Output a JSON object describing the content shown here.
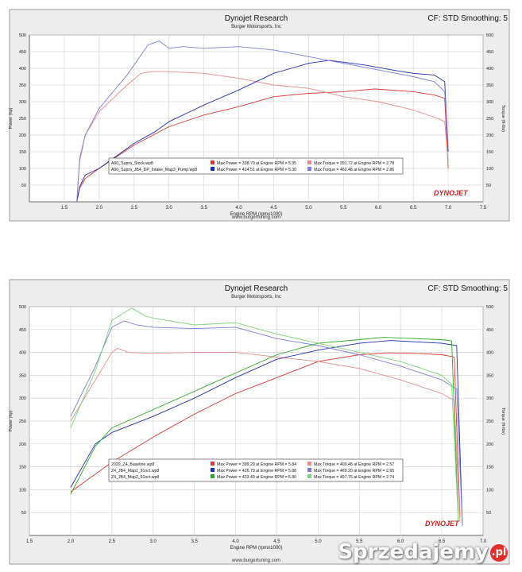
{
  "watermark": {
    "text": "Sprzedajemy",
    "suffix": ".pl"
  },
  "chart_data": [
    {
      "type": "line",
      "title": "Dynojet Research",
      "subtitle": "Burger Motorsports, Inc",
      "header_right": "CF: STD Smoothing: 5",
      "xlabel": "Engine RPM (rpmx1000)",
      "ylabel_left": "Power (hp)",
      "ylabel_right": "Torque (ft-lbs)",
      "footer": "www.burgertuning.com",
      "logo": "DYNOJET",
      "xlim": [
        1.0,
        7.5
      ],
      "ylim": [
        0,
        500
      ],
      "xticks": [
        "1.5",
        "2.0",
        "2.5",
        "3.0",
        "3.5",
        "4.0",
        "4.5",
        "5.0",
        "5.5",
        "6.0",
        "6.5",
        "7.0",
        "7.5"
      ],
      "yticks": [
        "50",
        "100",
        "150",
        "200",
        "250",
        "300",
        "350",
        "400",
        "450",
        "500"
      ],
      "grid": true,
      "legend_position": "bottom-center",
      "legend": [
        {
          "run": "A90_Supra_Stock.wp8",
          "power": "Max Power = 338.70 at Engine RPM = 5.95",
          "torque": "Max Torque = 391.72 at Engine RPM = 2.78",
          "power_color": "#d83a3a",
          "torque_color": "#e88a8a"
        },
        {
          "run": "A90_Supra_JB4_DP_Intake_Map3_Pump.wp8",
          "power": "Max Power = 424.51 at Engine RPM = 5.30",
          "torque": "Max Torque = 482.48 at Engine RPM = 2.86",
          "power_color": "#2030a8",
          "torque_color": "#7a7ed8"
        }
      ],
      "series": [
        {
          "name": "A90_Supra_Stock.wp8 Power",
          "color": "#d83a3a",
          "points": [
            [
              1.68,
              0
            ],
            [
              1.72,
              40
            ],
            [
              1.8,
              70
            ],
            [
              2.0,
              100
            ],
            [
              2.5,
              170
            ],
            [
              3.0,
              225
            ],
            [
              3.5,
              260
            ],
            [
              4.0,
              285
            ],
            [
              4.5,
              315
            ],
            [
              5.0,
              325
            ],
            [
              5.5,
              330
            ],
            [
              5.95,
              338
            ],
            [
              6.5,
              330
            ],
            [
              6.8,
              320
            ],
            [
              6.95,
              310
            ],
            [
              7.0,
              100
            ]
          ]
        },
        {
          "name": "A90_Supra_Stock.wp8 Torque",
          "color": "#e88a8a",
          "points": [
            [
              1.68,
              0
            ],
            [
              1.72,
              120
            ],
            [
              1.8,
              200
            ],
            [
              2.0,
              270
            ],
            [
              2.4,
              350
            ],
            [
              2.6,
              385
            ],
            [
              2.78,
              391
            ],
            [
              3.0,
              390
            ],
            [
              3.5,
              385
            ],
            [
              4.0,
              370
            ],
            [
              4.5,
              350
            ],
            [
              5.0,
              340
            ],
            [
              5.5,
              315
            ],
            [
              6.0,
              300
            ],
            [
              6.5,
              275
            ],
            [
              6.85,
              250
            ],
            [
              6.95,
              240
            ],
            [
              7.0,
              120
            ]
          ]
        },
        {
          "name": "A90_Supra_JB4_DP_Intake_Map3_Pump.wp8 Power",
          "color": "#2030a8",
          "points": [
            [
              1.68,
              0
            ],
            [
              1.72,
              45
            ],
            [
              1.8,
              80
            ],
            [
              2.0,
              100
            ],
            [
              2.5,
              175
            ],
            [
              2.8,
              210
            ],
            [
              3.0,
              240
            ],
            [
              3.5,
              290
            ],
            [
              4.0,
              335
            ],
            [
              4.5,
              385
            ],
            [
              5.0,
              415
            ],
            [
              5.3,
              424
            ],
            [
              5.8,
              410
            ],
            [
              6.2,
              395
            ],
            [
              6.5,
              385
            ],
            [
              6.8,
              380
            ],
            [
              6.95,
              360
            ],
            [
              7.0,
              150
            ]
          ]
        },
        {
          "name": "A90_Supra_JB4_DP_Intake_Map3_Pump.wp8 Torque",
          "color": "#7a7ed8",
          "points": [
            [
              1.68,
              0
            ],
            [
              1.72,
              130
            ],
            [
              1.8,
              200
            ],
            [
              2.0,
              280
            ],
            [
              2.4,
              380
            ],
            [
              2.7,
              470
            ],
            [
              2.86,
              482
            ],
            [
              3.0,
              460
            ],
            [
              3.2,
              465
            ],
            [
              3.5,
              460
            ],
            [
              4.0,
              465
            ],
            [
              4.5,
              455
            ],
            [
              5.0,
              435
            ],
            [
              5.5,
              415
            ],
            [
              6.0,
              395
            ],
            [
              6.5,
              375
            ],
            [
              6.8,
              360
            ],
            [
              6.95,
              330
            ],
            [
              7.0,
              170
            ]
          ]
        }
      ]
    },
    {
      "type": "line",
      "title": "Dynojet Research",
      "subtitle": "Burger Motorsports, Inc",
      "header_right": "CF: STD Smoothing: 5",
      "xlabel": "Engine RPM (rpmx1000)",
      "ylabel_left": "Power (hp)",
      "ylabel_right": "Torque (ft-lbs)",
      "footer": "www.burgertuning.com",
      "logo": "DYNOJET",
      "xlim": [
        1.5,
        7.0
      ],
      "ylim": [
        0,
        500
      ],
      "xticks": [
        "1.5",
        "2.0",
        "2.5",
        "3.0",
        "3.5",
        "4.0",
        "4.5",
        "5.0",
        "5.5",
        "6.0",
        "6.5",
        "7.0"
      ],
      "yticks": [
        "50",
        "100",
        "150",
        "200",
        "250",
        "300",
        "350",
        "400",
        "450",
        "500"
      ],
      "grid": true,
      "legend_position": "bottom-center",
      "legend": [
        {
          "run": "2020_Z4_Baseline.wp8",
          "power": "Max Power = 399.29 at Engine RPM = 5.84",
          "torque": "Max Torque = 409.48 at Engine RPM = 2.57",
          "power_color": "#d83a3a",
          "torque_color": "#e88a8a"
        },
        {
          "run": "Z4_JB4_Map1_91oct.wp8",
          "power": "Max Power = 426.79 at Engine RPM = 5.88",
          "torque": "Max Torque = 469.20 at Engine RPM = 2.65",
          "power_color": "#2030a8",
          "torque_color": "#7a7ed8"
        },
        {
          "run": "Z4_JB4_Map2_91oct.wp8",
          "power": "Max Power = 433.49 at Engine RPM = 5.80",
          "torque": "Max Torque = 497.76 at Engine RPM = 2.74",
          "power_color": "#2aa82a",
          "torque_color": "#7fd07f"
        }
      ],
      "series": [
        {
          "name": "2020_Z4_Baseline.wp8 Power",
          "color": "#d83a3a",
          "points": [
            [
              2.0,
              95
            ],
            [
              2.5,
              160
            ],
            [
              3.0,
              215
            ],
            [
              3.5,
              265
            ],
            [
              4.0,
              310
            ],
            [
              4.5,
              345
            ],
            [
              5.0,
              380
            ],
            [
              5.5,
              395
            ],
            [
              5.84,
              399
            ],
            [
              6.2,
              398
            ],
            [
              6.5,
              395
            ],
            [
              6.65,
              390
            ],
            [
              6.72,
              40
            ]
          ]
        },
        {
          "name": "2020_Z4_Baseline.wp8 Torque",
          "color": "#e88a8a",
          "points": [
            [
              2.0,
              250
            ],
            [
              2.3,
              340
            ],
            [
              2.5,
              400
            ],
            [
              2.57,
              409
            ],
            [
              2.7,
              400
            ],
            [
              3.0,
              398
            ],
            [
              3.5,
              400
            ],
            [
              4.0,
              400
            ],
            [
              4.5,
              390
            ],
            [
              5.0,
              380
            ],
            [
              5.5,
              365
            ],
            [
              6.0,
              340
            ],
            [
              6.5,
              310
            ],
            [
              6.65,
              295
            ],
            [
              6.72,
              30
            ]
          ]
        },
        {
          "name": "Z4_JB4_Map1_91oct.wp8 Power",
          "color": "#2030a8",
          "points": [
            [
              2.0,
              105
            ],
            [
              2.3,
              200
            ],
            [
              2.5,
              225
            ],
            [
              3.0,
              260
            ],
            [
              3.5,
              300
            ],
            [
              4.0,
              345
            ],
            [
              4.5,
              385
            ],
            [
              5.0,
              405
            ],
            [
              5.5,
              420
            ],
            [
              5.88,
              426
            ],
            [
              6.2,
              423
            ],
            [
              6.5,
              420
            ],
            [
              6.68,
              415
            ],
            [
              6.75,
              20
            ]
          ]
        },
        {
          "name": "Z4_JB4_Map1_91oct.wp8 Torque",
          "color": "#7a7ed8",
          "points": [
            [
              2.0,
              260
            ],
            [
              2.3,
              370
            ],
            [
              2.5,
              455
            ],
            [
              2.65,
              469
            ],
            [
              2.8,
              460
            ],
            [
              3.0,
              455
            ],
            [
              3.5,
              452
            ],
            [
              4.0,
              455
            ],
            [
              4.5,
              430
            ],
            [
              5.0,
              415
            ],
            [
              5.5,
              395
            ],
            [
              6.0,
              370
            ],
            [
              6.5,
              340
            ],
            [
              6.68,
              320
            ],
            [
              6.75,
              20
            ]
          ]
        },
        {
          "name": "Z4_JB4_Map2_91oct.wp8 Power",
          "color": "#2aa82a",
          "points": [
            [
              2.0,
              90
            ],
            [
              2.3,
              195
            ],
            [
              2.5,
              235
            ],
            [
              3.0,
              275
            ],
            [
              3.5,
              315
            ],
            [
              4.0,
              355
            ],
            [
              4.5,
              395
            ],
            [
              5.0,
              420
            ],
            [
              5.5,
              428
            ],
            [
              5.8,
              433
            ],
            [
              6.2,
              430
            ],
            [
              6.5,
              428
            ],
            [
              6.62,
              425
            ],
            [
              6.7,
              30
            ]
          ]
        },
        {
          "name": "Z4_JB4_Map2_91oct.wp8 Torque",
          "color": "#7fd07f",
          "points": [
            [
              2.0,
              235
            ],
            [
              2.3,
              360
            ],
            [
              2.5,
              470
            ],
            [
              2.74,
              497
            ],
            [
              2.9,
              480
            ],
            [
              3.0,
              475
            ],
            [
              3.5,
              460
            ],
            [
              4.0,
              465
            ],
            [
              4.5,
              440
            ],
            [
              5.0,
              420
            ],
            [
              5.5,
              400
            ],
            [
              6.0,
              380
            ],
            [
              6.5,
              350
            ],
            [
              6.62,
              330
            ],
            [
              6.7,
              30
            ]
          ]
        }
      ]
    }
  ]
}
